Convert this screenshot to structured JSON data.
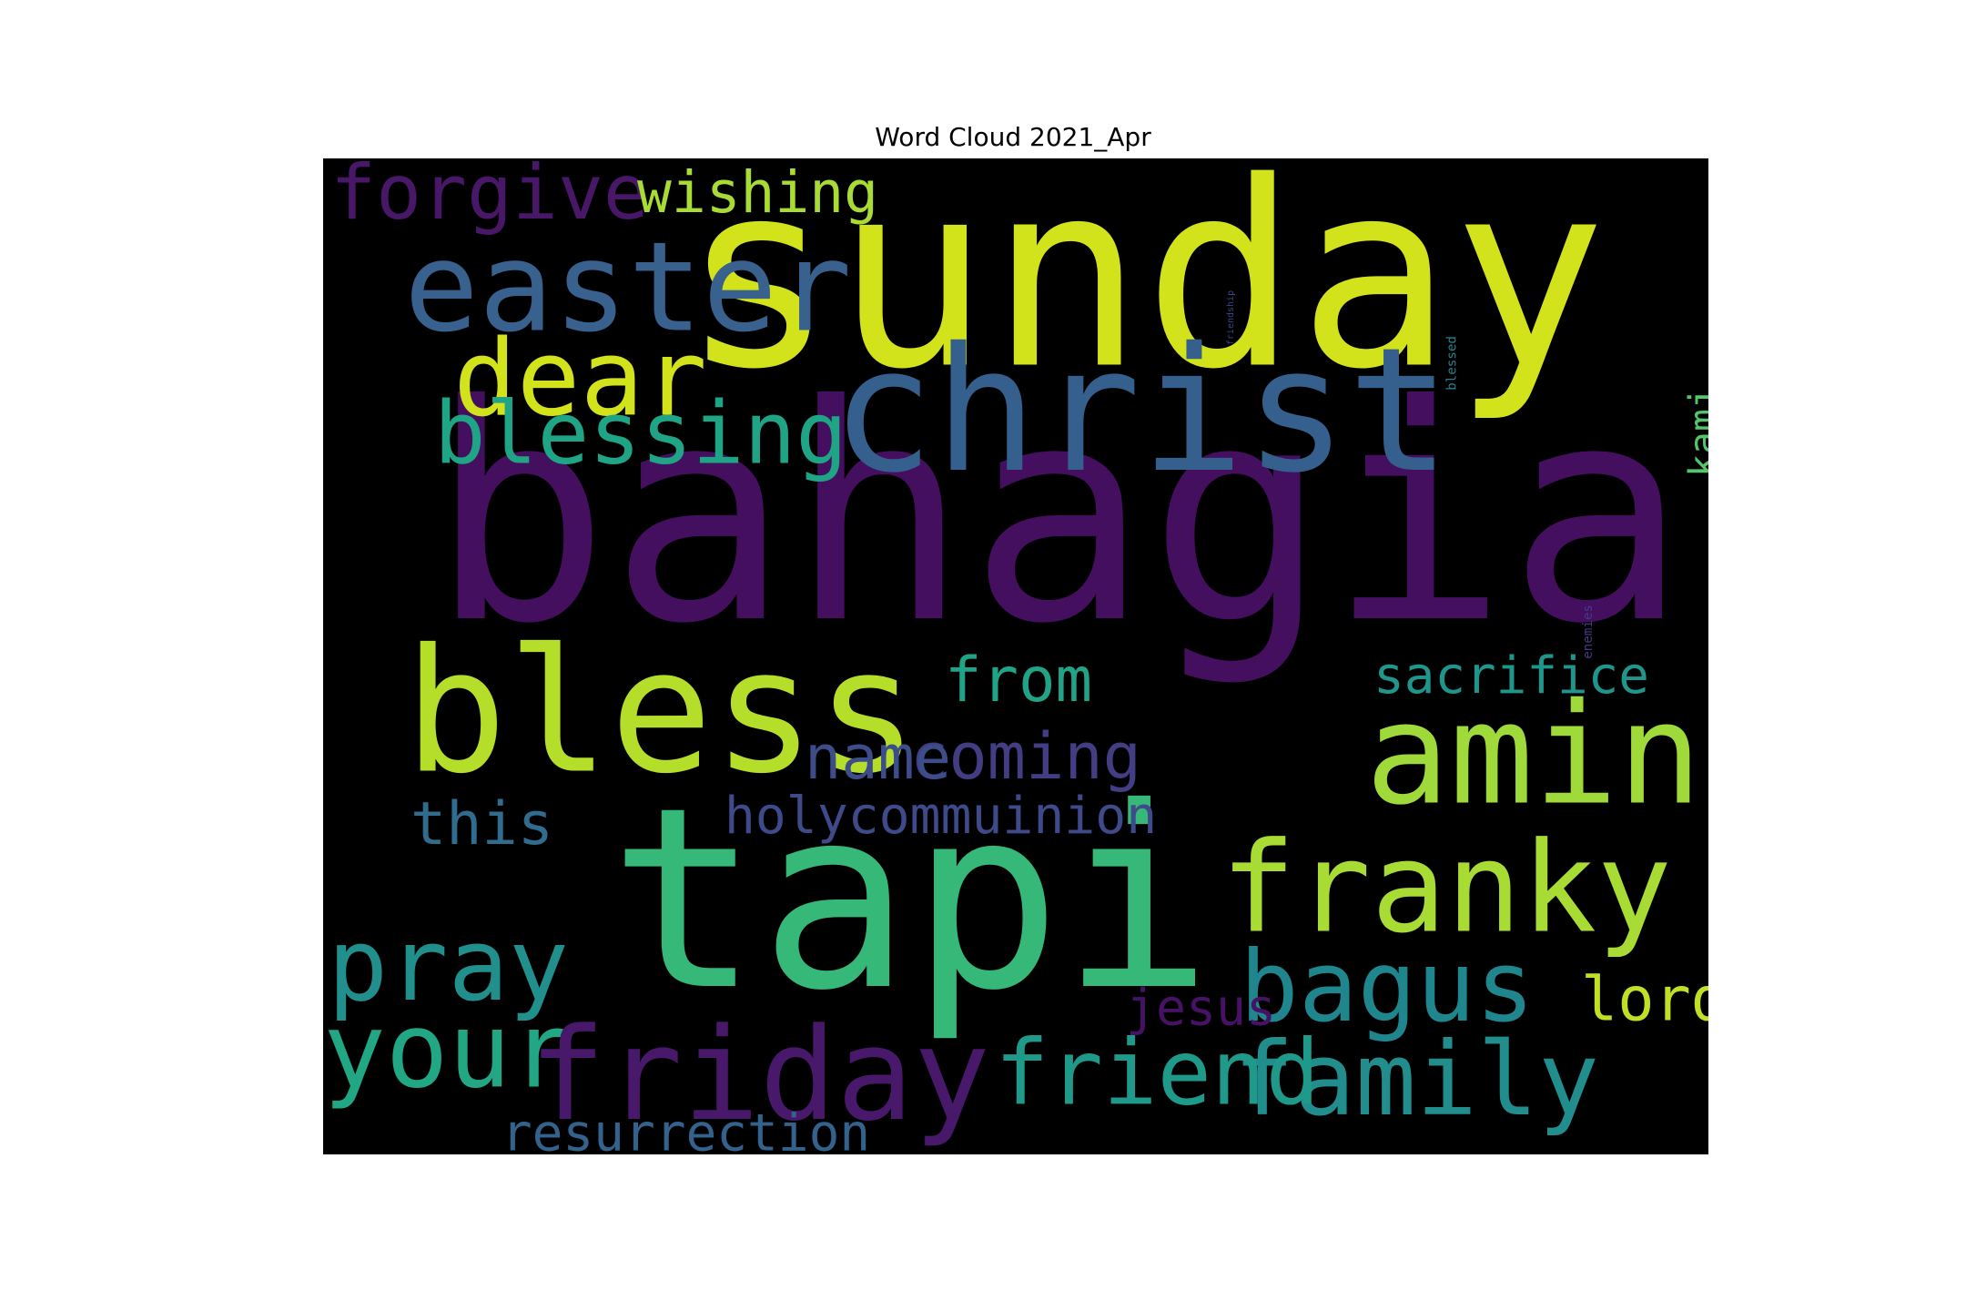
{
  "chart_data": {
    "type": "wordcloud",
    "title": "Word Cloud 2021_Apr",
    "background": "#000000",
    "colormap": "viridis",
    "words": [
      {
        "text": "bahagia",
        "color": "#440f5f"
      },
      {
        "text": "tapi",
        "color": "#35b878"
      },
      {
        "text": "sunday",
        "color": "#d2e21b"
      },
      {
        "text": "christ",
        "color": "#355f8d"
      },
      {
        "text": "bless",
        "color": "#b5de2b"
      },
      {
        "text": "amin",
        "color": "#9fda3a"
      },
      {
        "text": "easter",
        "color": "#39618e"
      },
      {
        "text": "franky",
        "color": "#a8db34"
      },
      {
        "text": "family",
        "color": "#218e8d"
      },
      {
        "text": "your",
        "color": "#22a785"
      },
      {
        "text": "friday",
        "color": "#48186a"
      },
      {
        "text": "pray",
        "color": "#21908d"
      },
      {
        "text": "friend",
        "color": "#1f9a8a"
      },
      {
        "text": "bagus",
        "color": "#20868e"
      },
      {
        "text": "kami",
        "color": "#54c568"
      },
      {
        "text": "dear",
        "color": "#d2e21b"
      },
      {
        "text": "forgive",
        "color": "#481767"
      },
      {
        "text": "blessing",
        "color": "#20a486"
      },
      {
        "text": "wishing",
        "color": "#a8db34"
      },
      {
        "text": "sacrifice",
        "color": "#1f968b"
      },
      {
        "text": "holycommuinion",
        "color": "#3e4a89"
      },
      {
        "text": "resurrection",
        "color": "#33638d"
      },
      {
        "text": "coming",
        "color": "#433d84"
      },
      {
        "text": "enemies",
        "color": "#443a83"
      },
      {
        "text": "friendship",
        "color": "#414487"
      },
      {
        "text": "blessed",
        "color": "#26828e"
      },
      {
        "text": "name",
        "color": "#3d4d8a"
      },
      {
        "text": "from",
        "color": "#20a386"
      },
      {
        "text": "this",
        "color": "#2f6c8e"
      },
      {
        "text": "lord",
        "color": "#c2df23"
      },
      {
        "text": "jesus",
        "color": "#471265"
      }
    ]
  }
}
